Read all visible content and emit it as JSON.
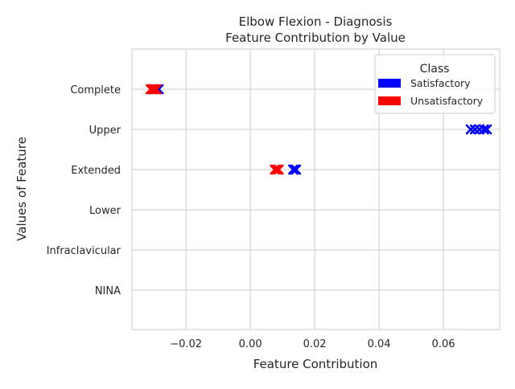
{
  "chart_data": {
    "type": "scatter",
    "title_line1": "Elbow Flexion - Diagnosis",
    "title_line2": "Feature Contribution by Value",
    "xlabel": "Feature Contribution",
    "ylabel": "Values of Feature",
    "categories": [
      "Complete",
      "Upper",
      "Extended",
      "Lower",
      "Infraclavicular",
      "NINA"
    ],
    "x_ticks": [
      -0.02,
      0.0,
      0.02,
      0.04,
      0.06
    ],
    "x_tick_labels": [
      "−0.02",
      "0.00",
      "0.02",
      "0.04",
      "0.06"
    ],
    "xlim": [
      -0.0368,
      0.0775
    ],
    "grid": true,
    "marker": "x",
    "legend": {
      "title": "Class",
      "placement": "top-right",
      "entries": [
        {
          "name": "Satisfactory",
          "color": "#0000ff"
        },
        {
          "name": "Unsatisfactory",
          "color": "#ff0000"
        }
      ]
    },
    "series": [
      {
        "name": "Satisfactory",
        "color": "#0000ff",
        "points": [
          {
            "category": "Complete",
            "x": -0.0285
          },
          {
            "category": "Complete",
            "x": -0.0292
          },
          {
            "category": "Complete",
            "x": -0.0298
          },
          {
            "category": "Complete",
            "x": -0.0303
          },
          {
            "category": "Upper",
            "x": 0.0685
          },
          {
            "category": "Upper",
            "x": 0.0698
          },
          {
            "category": "Upper",
            "x": 0.0712
          },
          {
            "category": "Upper",
            "x": 0.0726
          },
          {
            "category": "Upper",
            "x": 0.0735
          },
          {
            "category": "Extended",
            "x": 0.0133
          },
          {
            "category": "Extended",
            "x": 0.0138
          },
          {
            "category": "Extended",
            "x": 0.0142
          }
        ]
      },
      {
        "name": "Unsatisfactory",
        "color": "#ff0000",
        "points": [
          {
            "category": "Complete",
            "x": -0.031
          },
          {
            "category": "Complete",
            "x": -0.0304
          },
          {
            "category": "Complete",
            "x": -0.0298
          },
          {
            "category": "Complete",
            "x": -0.0292
          },
          {
            "category": "Extended",
            "x": 0.0076
          },
          {
            "category": "Extended",
            "x": 0.0082
          },
          {
            "category": "Extended",
            "x": 0.0088
          }
        ]
      }
    ]
  }
}
